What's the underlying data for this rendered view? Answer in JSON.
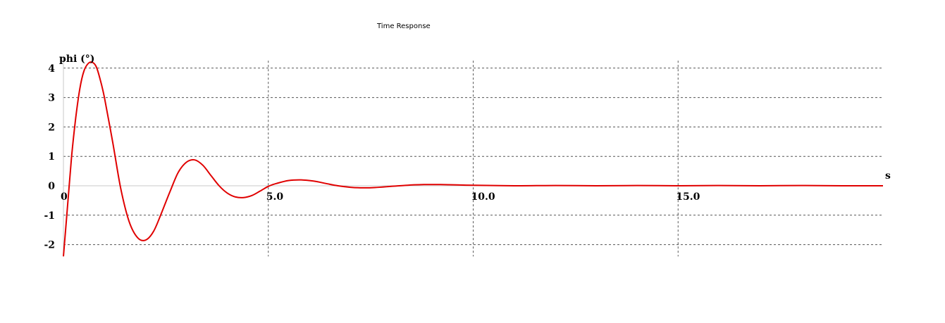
{
  "chart_data": {
    "type": "line",
    "title": "Time Response",
    "ylabel": "phi (°)",
    "xlabel": "s",
    "xlim": [
      0,
      20
    ],
    "ylim": [
      -2.4,
      4.3
    ],
    "x_ticks": [
      0,
      5,
      10,
      15
    ],
    "x_tick_labels": [
      "0",
      "5.0",
      "10.0",
      "15.0"
    ],
    "y_ticks": [
      4,
      3,
      2,
      1,
      0,
      -1,
      -2
    ],
    "y_tick_labels": [
      "4",
      "3",
      "2",
      "1",
      "0",
      "-1",
      "-2"
    ],
    "grid": true,
    "series": [
      {
        "color": "#e00000",
        "x": [
          0,
          0.1,
          0.2,
          0.3,
          0.4,
          0.5,
          0.6,
          0.7,
          0.8,
          0.9,
          1.0,
          1.2,
          1.4,
          1.6,
          1.8,
          2.0,
          2.2,
          2.4,
          2.6,
          2.8,
          3.0,
          3.2,
          3.4,
          3.6,
          3.8,
          4.0,
          4.2,
          4.4,
          4.6,
          4.8,
          5.0,
          5.2,
          5.5,
          5.8,
          6.1,
          6.4,
          6.7,
          7.0,
          7.3,
          7.6,
          8.0,
          8.4,
          8.8,
          9.2,
          9.6,
          10.0,
          11.0,
          12.0,
          13.0,
          14.0,
          15.0,
          16.0,
          17.0,
          18.0,
          19.0,
          20.0
        ],
        "y": [
          -2.4,
          -0.7,
          1.0,
          2.3,
          3.3,
          3.9,
          4.15,
          4.2,
          4.05,
          3.6,
          3.0,
          1.5,
          -0.1,
          -1.2,
          -1.75,
          -1.85,
          -1.55,
          -0.9,
          -0.2,
          0.45,
          0.8,
          0.88,
          0.7,
          0.35,
          0.0,
          -0.25,
          -0.38,
          -0.4,
          -0.33,
          -0.18,
          -0.02,
          0.08,
          0.18,
          0.2,
          0.16,
          0.08,
          0.0,
          -0.05,
          -0.07,
          -0.06,
          -0.02,
          0.02,
          0.04,
          0.04,
          0.03,
          0.02,
          0.0,
          0.01,
          0.0,
          0.01,
          0.0,
          0.01,
          0.0,
          0.01,
          0.0,
          0.0
        ]
      }
    ]
  }
}
